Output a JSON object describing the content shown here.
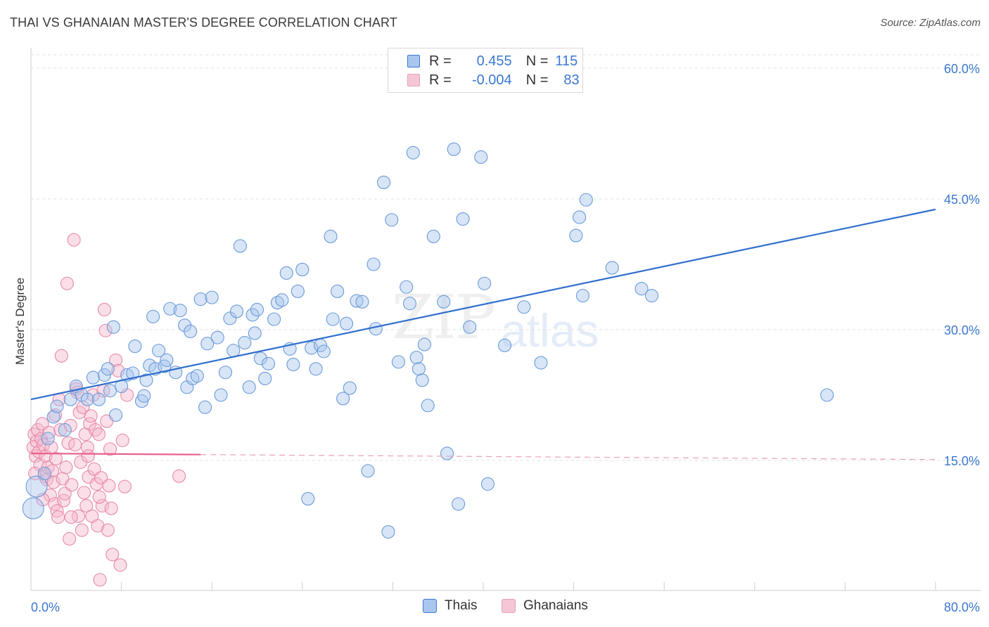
{
  "title": "THAI VS GHANAIAN MASTER'S DEGREE CORRELATION CHART",
  "source": "Source: ZipAtlas.com",
  "watermark": {
    "zip": "ZIP",
    "atlas": "atlas"
  },
  "colors": {
    "thai": "#3b78d0",
    "ghanaian": "#e8608a",
    "thai_fill": "#a9c6ee",
    "ghanaian_fill": "#f5b8cb"
  },
  "legend": {
    "rows": [
      {
        "r_label": "R =",
        "r_value": "0.455",
        "n_label": "N =",
        "n_value": "115"
      },
      {
        "r_label": "R =",
        "r_value": "-0.004",
        "n_label": "N =",
        "n_value": "83"
      }
    ]
  },
  "bottom_legend": {
    "thai": "Thais",
    "ghanaian": "Ghanaians"
  },
  "chart_data": {
    "type": "scatter",
    "title": "THAI VS GHANAIAN MASTER'S DEGREE CORRELATION CHART",
    "xlabel": "",
    "ylabel": "Master's Degree",
    "xlim": [
      0,
      80
    ],
    "ylim": [
      0,
      62
    ],
    "x_tick_labels": [
      "0.0%",
      "80.0%"
    ],
    "y_tick_labels": [
      "15.0%",
      "30.0%",
      "45.0%",
      "60.0%"
    ],
    "y_ticks": [
      15,
      30,
      45,
      60
    ],
    "series": [
      {
        "name": "Thais",
        "r": 0.455,
        "n": 115,
        "trend": {
          "x0": 0,
          "y0": 22.0,
          "x1": 80,
          "y1": 43.8
        },
        "points": [
          [
            0.2,
            9.5
          ],
          [
            0.5,
            12
          ],
          [
            1.2,
            13.5
          ],
          [
            1.5,
            17.5
          ],
          [
            2,
            20
          ],
          [
            3,
            18.5
          ],
          [
            3.5,
            22
          ],
          [
            4,
            23.5
          ],
          [
            4.5,
            22.5
          ],
          [
            5,
            22
          ],
          [
            5.5,
            24.5
          ],
          [
            6,
            22
          ],
          [
            6.5,
            24.8
          ],
          [
            7,
            23
          ],
          [
            7.3,
            30.3
          ],
          [
            7.5,
            20.2
          ],
          [
            8,
            23.5
          ],
          [
            8.5,
            24.8
          ],
          [
            9,
            25
          ],
          [
            9.2,
            28.1
          ],
          [
            9.8,
            21.8
          ],
          [
            10,
            22.4
          ],
          [
            10.2,
            24.2
          ],
          [
            10.5,
            25.9
          ],
          [
            11,
            25.5
          ],
          [
            11.3,
            27.6
          ],
          [
            11.8,
            25.8
          ],
          [
            12,
            26.5
          ],
          [
            12.3,
            32.4
          ],
          [
            12.8,
            25.1
          ],
          [
            13.2,
            32.2
          ],
          [
            13.6,
            30.5
          ],
          [
            13.8,
            23.4
          ],
          [
            14.3,
            24.4
          ],
          [
            14.7,
            24.7
          ],
          [
            15,
            33.5
          ],
          [
            15.4,
            21.1
          ],
          [
            15.6,
            28.4
          ],
          [
            16,
            33.7
          ],
          [
            16.5,
            29.1
          ],
          [
            16.8,
            22.5
          ],
          [
            17.2,
            25.1
          ],
          [
            17.6,
            31.3
          ],
          [
            17.9,
            27.6
          ],
          [
            18.2,
            32.1
          ],
          [
            18.5,
            39.6
          ],
          [
            18.9,
            28.5
          ],
          [
            19.3,
            23.4
          ],
          [
            19.6,
            31.7
          ],
          [
            20,
            32.3
          ],
          [
            20.3,
            26.7
          ],
          [
            20.7,
            24.4
          ],
          [
            21,
            26.1
          ],
          [
            21.5,
            31.2
          ],
          [
            21.8,
            33.1
          ],
          [
            22.2,
            33.4
          ],
          [
            22.6,
            36.5
          ],
          [
            22.9,
            27.8
          ],
          [
            23.2,
            26
          ],
          [
            23.6,
            34.4
          ],
          [
            24,
            36.9
          ],
          [
            24.5,
            10.6
          ],
          [
            24.8,
            27.9
          ],
          [
            25.2,
            25.5
          ],
          [
            25.6,
            28.2
          ],
          [
            25.9,
            27.5
          ],
          [
            26.5,
            40.7
          ],
          [
            27.1,
            34.4
          ],
          [
            27.6,
            22.1
          ],
          [
            27.9,
            30.7
          ],
          [
            28.2,
            23.3
          ],
          [
            28.8,
            33.3
          ],
          [
            29.3,
            33.2
          ],
          [
            29.8,
            13.8
          ],
          [
            30.3,
            37.5
          ],
          [
            30.5,
            30.1
          ],
          [
            31.2,
            46.9
          ],
          [
            31.6,
            6.8
          ],
          [
            31.9,
            42.6
          ],
          [
            32.5,
            26.3
          ],
          [
            33.2,
            34.9
          ],
          [
            33.5,
            33.0
          ],
          [
            33.8,
            50.3
          ],
          [
            34.1,
            26.8
          ],
          [
            34.3,
            25.5
          ],
          [
            34.6,
            24.2
          ],
          [
            35.1,
            21.3
          ],
          [
            35.6,
            40.7
          ],
          [
            36.5,
            33.2
          ],
          [
            36.8,
            15.8
          ],
          [
            37.4,
            50.7
          ],
          [
            37.8,
            10
          ],
          [
            38.2,
            42.7
          ],
          [
            38.8,
            30.3
          ],
          [
            39.8,
            49.8
          ],
          [
            40.1,
            35.3
          ],
          [
            40.4,
            12.3
          ],
          [
            41.9,
            28.2
          ],
          [
            43.6,
            32.6
          ],
          [
            45.1,
            26.2
          ],
          [
            48.2,
            40.8
          ],
          [
            48.5,
            42.9
          ],
          [
            48.8,
            33.9
          ],
          [
            49.1,
            44.9
          ],
          [
            51.4,
            37.1
          ],
          [
            54,
            34.7
          ],
          [
            54.9,
            33.9
          ],
          [
            70.4,
            22.5
          ],
          [
            2.3,
            21.2
          ],
          [
            6.8,
            25.5
          ],
          [
            10.8,
            31.5
          ],
          [
            14.1,
            29.8
          ],
          [
            19.8,
            29.6
          ],
          [
            26.7,
            31.2
          ],
          [
            34.8,
            28.3
          ]
        ]
      },
      {
        "name": "Ghanaians",
        "r": -0.004,
        "n": 83,
        "trend": {
          "x0": 0,
          "y0": 15.8,
          "x1": 80,
          "y1": 15.1
        },
        "points": [
          [
            0.2,
            16.5
          ],
          [
            0.3,
            18
          ],
          [
            0.4,
            15.5
          ],
          [
            0.5,
            17.2
          ],
          [
            0.6,
            18.5
          ],
          [
            0.7,
            16
          ],
          [
            0.8,
            14.5
          ],
          [
            0.9,
            17.5
          ],
          [
            1,
            19.2
          ],
          [
            1.1,
            16.8
          ],
          [
            1.2,
            13.2
          ],
          [
            1.3,
            15.5
          ],
          [
            1.4,
            12.8
          ],
          [
            1.5,
            14.2
          ],
          [
            1.6,
            18.2
          ],
          [
            1.7,
            11
          ],
          [
            1.8,
            16.5
          ],
          [
            1.9,
            13.8
          ],
          [
            2,
            12.5
          ],
          [
            2.1,
            10
          ],
          [
            2.2,
            15.2
          ],
          [
            2.3,
            9.2
          ],
          [
            2.4,
            8.5
          ],
          [
            2.5,
            22
          ],
          [
            2.6,
            18.5
          ],
          [
            2.7,
            27
          ],
          [
            2.8,
            12.9
          ],
          [
            2.9,
            10.4
          ],
          [
            3,
            11.2
          ],
          [
            3.1,
            14.2
          ],
          [
            3.2,
            35.3
          ],
          [
            3.3,
            17
          ],
          [
            3.4,
            6
          ],
          [
            3.5,
            19
          ],
          [
            3.6,
            12.2
          ],
          [
            3.8,
            40.3
          ],
          [
            3.9,
            16.8
          ],
          [
            4,
            23.2
          ],
          [
            4.1,
            22.8
          ],
          [
            4.2,
            8.6
          ],
          [
            4.3,
            20.5
          ],
          [
            4.4,
            14.8
          ],
          [
            4.5,
            7
          ],
          [
            4.6,
            21.1
          ],
          [
            4.7,
            11.3
          ],
          [
            4.8,
            18
          ],
          [
            4.9,
            9.8
          ],
          [
            5,
            16.5
          ],
          [
            5.1,
            13.1
          ],
          [
            5.2,
            19.2
          ],
          [
            5.3,
            20.1
          ],
          [
            5.4,
            8.6
          ],
          [
            5.5,
            22.5
          ],
          [
            5.6,
            14
          ],
          [
            5.7,
            18.5
          ],
          [
            5.8,
            12.3
          ],
          [
            5.9,
            7.5
          ],
          [
            6,
            18
          ],
          [
            6.1,
            1.3
          ],
          [
            6.2,
            13
          ],
          [
            6.3,
            9.8
          ],
          [
            6.4,
            23
          ],
          [
            6.5,
            32.3
          ],
          [
            6.6,
            29.9
          ],
          [
            6.7,
            19.5
          ],
          [
            6.8,
            7.0
          ],
          [
            6.9,
            12.1
          ],
          [
            7,
            16.3
          ],
          [
            7.1,
            9.5
          ],
          [
            7.2,
            4.2
          ],
          [
            7.5,
            26.5
          ],
          [
            7.7,
            25.3
          ],
          [
            7.9,
            3
          ],
          [
            8.1,
            17.3
          ],
          [
            8.3,
            12
          ],
          [
            8.5,
            22.5
          ],
          [
            0.35,
            13.5
          ],
          [
            1.05,
            10.5
          ],
          [
            2.15,
            20.2
          ],
          [
            3.55,
            8.5
          ],
          [
            5.05,
            15.5
          ],
          [
            6.05,
            10.8
          ],
          [
            13.1,
            13.2
          ]
        ]
      }
    ]
  }
}
